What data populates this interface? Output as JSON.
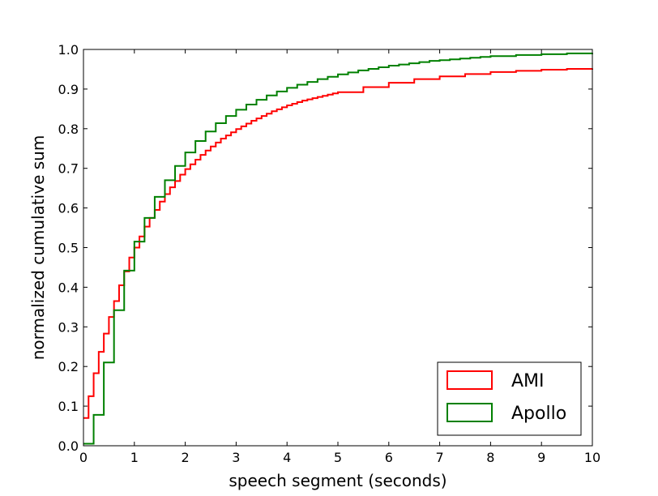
{
  "chart_data": {
    "type": "line",
    "step": true,
    "xlabel": "speech segment (seconds)",
    "ylabel": "normalized cumulative sum",
    "xlim": [
      0,
      10
    ],
    "ylim": [
      0,
      1.0
    ],
    "xticks": [
      "0",
      "1",
      "2",
      "3",
      "4",
      "5",
      "6",
      "7",
      "8",
      "9",
      "10"
    ],
    "yticks": [
      "0.0",
      "0.1",
      "0.2",
      "0.3",
      "0.4",
      "0.5",
      "0.6",
      "0.7",
      "0.8",
      "0.9",
      "1.0"
    ],
    "grid": false,
    "legend_position": "bottom-right",
    "series": [
      {
        "name": "AMI",
        "color": "#ff0000",
        "x": [
          0.0,
          0.1,
          0.2,
          0.3,
          0.4,
          0.5,
          0.6,
          0.7,
          0.8,
          0.9,
          1.0,
          1.1,
          1.2,
          1.3,
          1.4,
          1.5,
          1.6,
          1.7,
          1.8,
          1.9,
          2.0,
          2.1,
          2.2,
          2.3,
          2.4,
          2.5,
          2.6,
          2.7,
          2.8,
          2.9,
          3.0,
          3.1,
          3.2,
          3.3,
          3.4,
          3.5,
          3.6,
          3.7,
          3.8,
          3.9,
          4.0,
          4.1,
          4.2,
          4.3,
          4.4,
          4.5,
          4.6,
          4.7,
          4.8,
          4.9,
          5.0,
          5.5,
          6.0,
          6.5,
          7.0,
          7.5,
          8.0,
          8.5,
          9.0,
          9.5,
          10.0
        ],
        "y": [
          0.07,
          0.125,
          0.183,
          0.237,
          0.283,
          0.325,
          0.365,
          0.405,
          0.44,
          0.475,
          0.5,
          0.528,
          0.553,
          0.575,
          0.595,
          0.616,
          0.635,
          0.652,
          0.668,
          0.684,
          0.698,
          0.71,
          0.722,
          0.734,
          0.745,
          0.755,
          0.765,
          0.775,
          0.783,
          0.791,
          0.799,
          0.806,
          0.813,
          0.82,
          0.826,
          0.832,
          0.838,
          0.844,
          0.849,
          0.854,
          0.859,
          0.863,
          0.867,
          0.871,
          0.874,
          0.877,
          0.88,
          0.883,
          0.886,
          0.889,
          0.892,
          0.905,
          0.916,
          0.925,
          0.932,
          0.938,
          0.943,
          0.946,
          0.949,
          0.951,
          0.952
        ]
      },
      {
        "name": "Apollo",
        "color": "#008000",
        "x": [
          0.0,
          0.2,
          0.4,
          0.6,
          0.8,
          1.0,
          1.2,
          1.4,
          1.6,
          1.8,
          2.0,
          2.2,
          2.4,
          2.6,
          2.8,
          3.0,
          3.2,
          3.4,
          3.6,
          3.8,
          4.0,
          4.2,
          4.4,
          4.6,
          4.8,
          5.0,
          5.2,
          5.4,
          5.6,
          5.8,
          6.0,
          6.2,
          6.4,
          6.6,
          6.8,
          7.0,
          7.2,
          7.4,
          7.6,
          7.8,
          8.0,
          8.5,
          9.0,
          9.5,
          10.0
        ],
        "y": [
          0.005,
          0.078,
          0.21,
          0.342,
          0.442,
          0.515,
          0.575,
          0.628,
          0.67,
          0.706,
          0.74,
          0.769,
          0.793,
          0.814,
          0.832,
          0.848,
          0.861,
          0.873,
          0.884,
          0.894,
          0.903,
          0.911,
          0.918,
          0.925,
          0.931,
          0.937,
          0.942,
          0.947,
          0.951,
          0.955,
          0.959,
          0.962,
          0.965,
          0.968,
          0.971,
          0.973,
          0.975,
          0.977,
          0.979,
          0.981,
          0.983,
          0.986,
          0.988,
          0.99,
          0.991
        ]
      }
    ]
  }
}
